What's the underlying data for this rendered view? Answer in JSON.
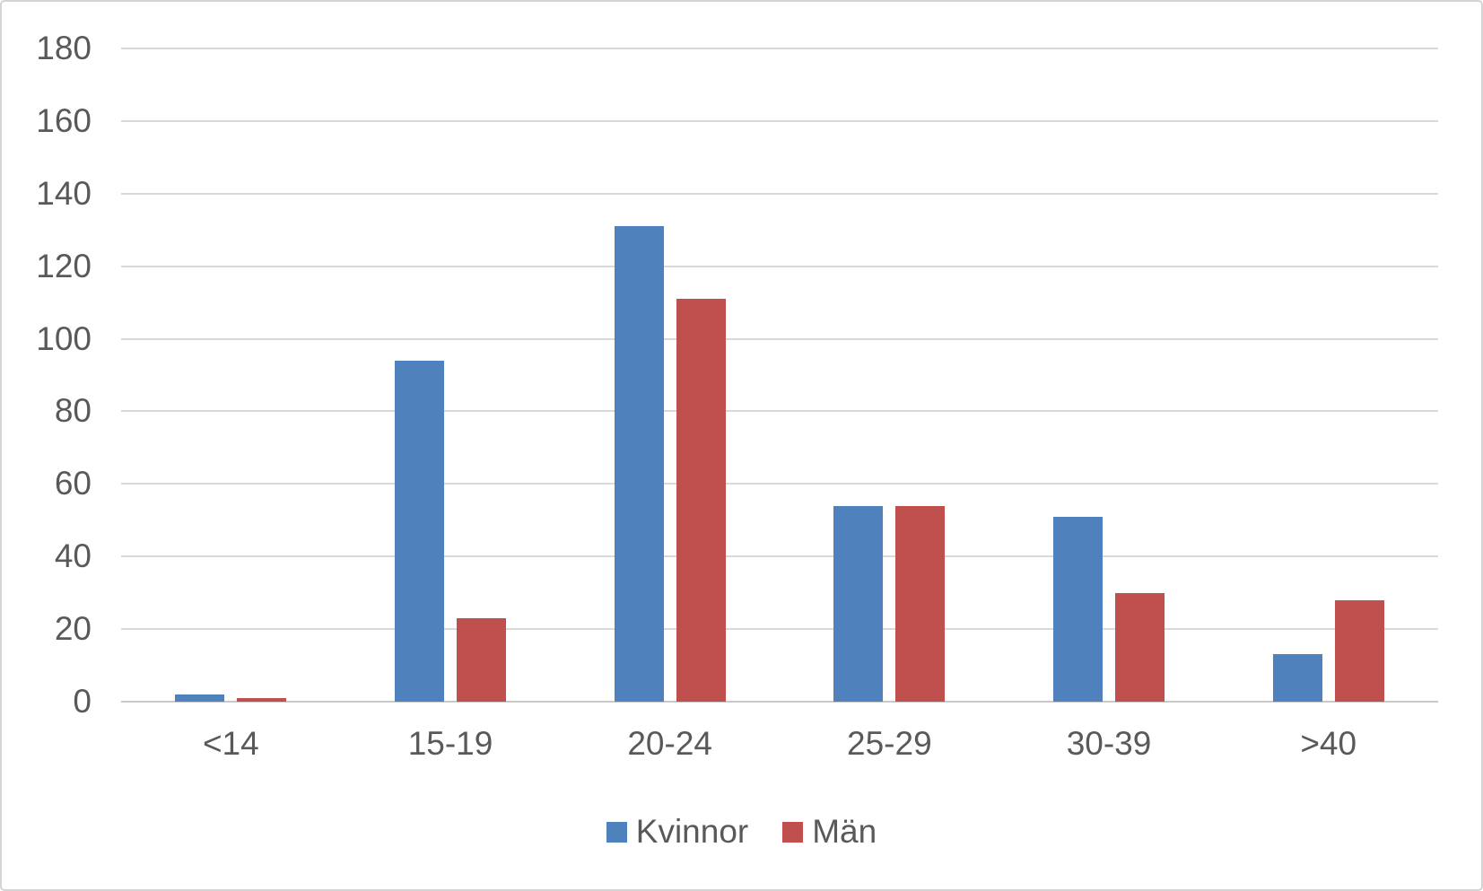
{
  "chart_data": {
    "type": "bar",
    "title": "",
    "xlabel": "",
    "ylabel": "",
    "categories": [
      "<14",
      "15-19",
      "20-24",
      "25-29",
      "30-39",
      ">40"
    ],
    "series": [
      {
        "name": "Kvinnor",
        "color": "#4F81BD",
        "values": [
          2,
          94,
          131,
          54,
          51,
          13
        ]
      },
      {
        "name": "Män",
        "color": "#C0504D",
        "values": [
          1,
          23,
          111,
          54,
          30,
          28
        ]
      }
    ],
    "ylim": [
      0,
      180
    ],
    "ytick_step": 20,
    "yticks": [
      0,
      20,
      40,
      60,
      80,
      100,
      120,
      140,
      160,
      180
    ],
    "grid": true,
    "legend_position": "bottom"
  },
  "colors": {
    "axis_text": "#595959",
    "gridline": "#D9D9D9",
    "axis_line": "#C9C9C9",
    "canvas_border": "#D4D4D4",
    "background": "#FFFFFF"
  }
}
